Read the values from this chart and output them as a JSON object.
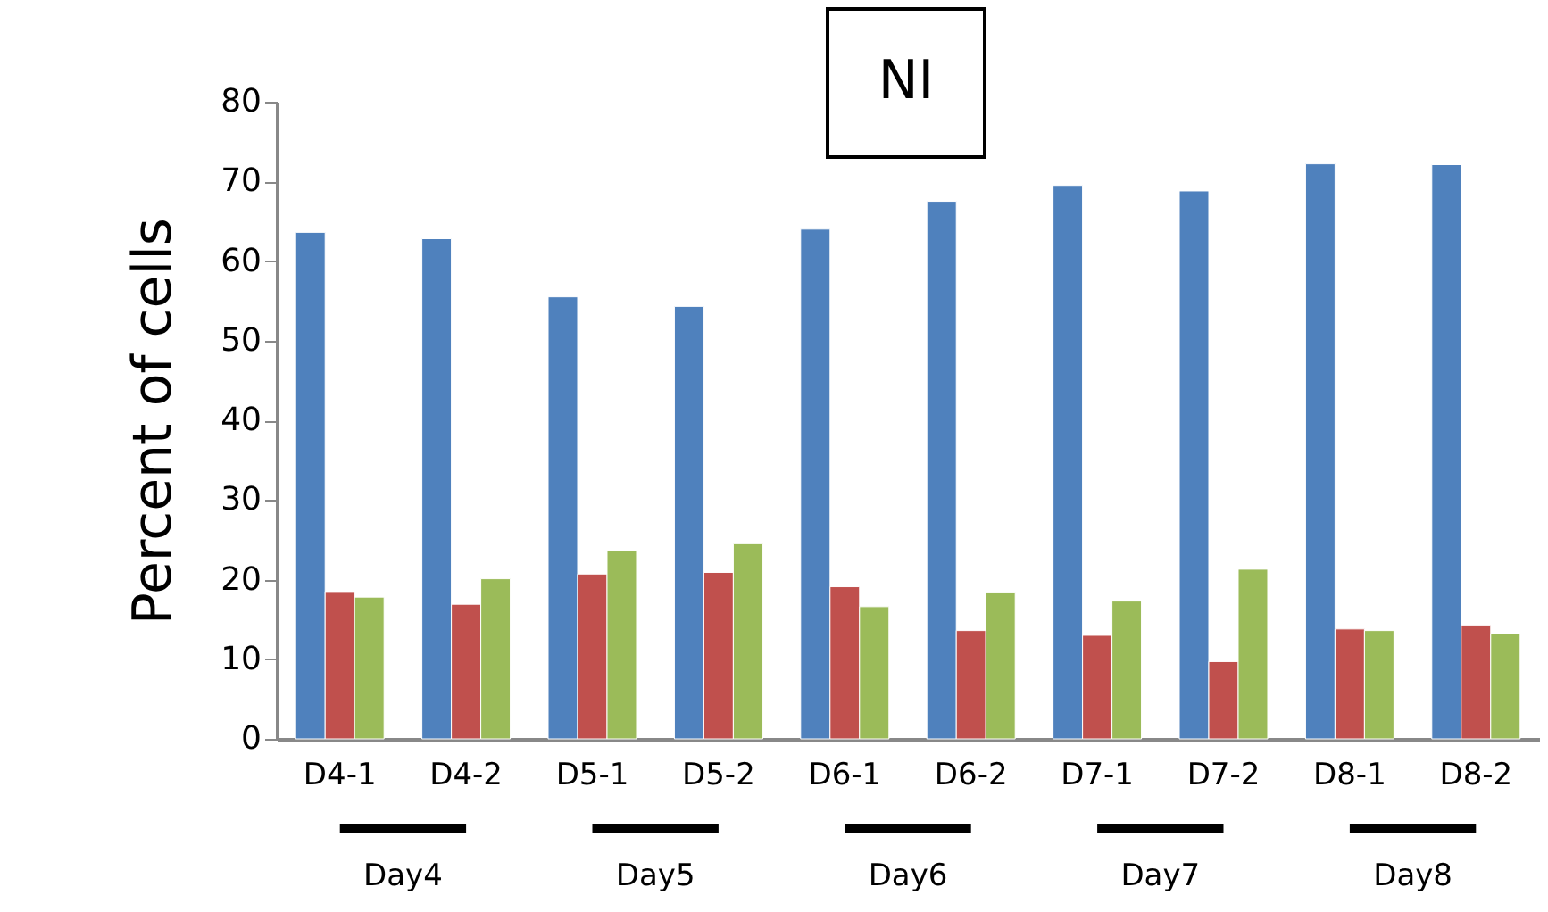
{
  "chart_data": {
    "type": "bar",
    "title": "NI",
    "ylabel": "Percent of cells",
    "categories": [
      "D4-1",
      "D4-2",
      "D5-1",
      "D5-2",
      "D6-1",
      "D6-2",
      "D7-1",
      "D7-2",
      "D8-1",
      "D8-2"
    ],
    "series": [
      {
        "color": "#4f81bd",
        "values": [
          63.6,
          62.8,
          55.5,
          54.3,
          64.0,
          67.5,
          69.5,
          68.8,
          72.2,
          72.1
        ]
      },
      {
        "color": "#c0504d",
        "values": [
          18.5,
          16.9,
          20.7,
          20.9,
          19.1,
          13.6,
          13.0,
          9.7,
          13.8,
          14.3
        ]
      },
      {
        "color": "#9bbb59",
        "values": [
          17.8,
          20.1,
          23.7,
          24.5,
          16.6,
          18.4,
          17.3,
          21.3,
          13.6,
          13.2
        ]
      }
    ],
    "annotations": [
      "Day4",
      "Day5",
      "Day6",
      "Day7",
      "Day8"
    ],
    "ylim": [
      0,
      80
    ],
    "yticks": [
      0,
      10,
      20,
      30,
      40,
      50,
      60,
      70,
      80
    ],
    "grid": false,
    "legend": false
  }
}
